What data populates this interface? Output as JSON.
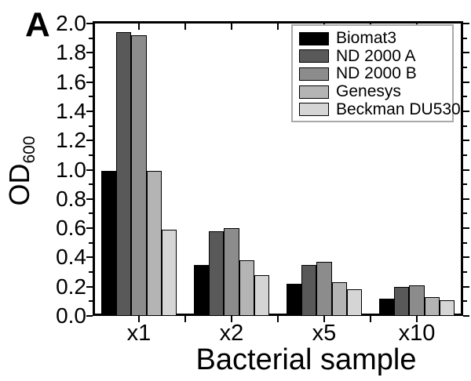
{
  "panel_label": "A",
  "chart_data": {
    "type": "bar",
    "categories": [
      "x1",
      "x2",
      "x5",
      "x10"
    ],
    "series": [
      {
        "name": "Biomat3",
        "color": "#000000",
        "values": [
          0.99,
          0.35,
          0.22,
          0.12
        ]
      },
      {
        "name": "ND 2000 A",
        "color": "#595959",
        "values": [
          1.94,
          0.58,
          0.35,
          0.2
        ]
      },
      {
        "name": "ND 2000 B",
        "color": "#8c8c8c",
        "values": [
          1.92,
          0.6,
          0.37,
          0.21
        ]
      },
      {
        "name": "Genesys",
        "color": "#b4b4b4",
        "values": [
          0.99,
          0.38,
          0.23,
          0.13
        ]
      },
      {
        "name": "Beckman DU530",
        "color": "#d5d5d5",
        "values": [
          0.59,
          0.28,
          0.18,
          0.11
        ]
      }
    ],
    "title": "",
    "xlabel": "Bacterial sample",
    "ylabel_main": "OD",
    "ylabel_sub": "600",
    "ylim": [
      0,
      2.0
    ],
    "ytick_step": 0.2,
    "ytick_labels": [
      "0.0",
      "0.2",
      "0.4",
      "0.6",
      "0.8",
      "1.0",
      "1.2",
      "1.4",
      "1.6",
      "1.8",
      "2.0"
    ],
    "grid": false,
    "legend_position": "top-right",
    "axis_color": "#000000",
    "legend_border_color": "#a9a9a9"
  }
}
